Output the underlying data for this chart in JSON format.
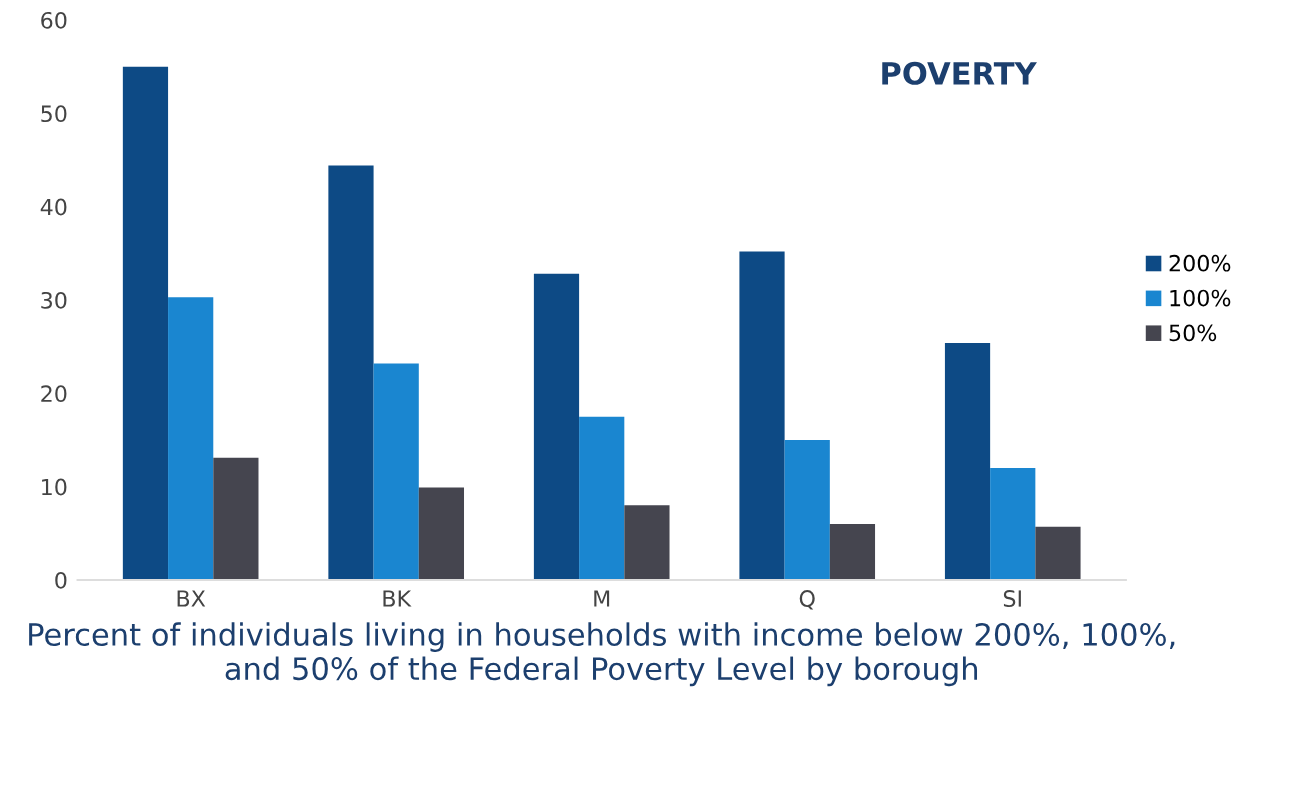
{
  "chart_data": {
    "type": "bar",
    "title": "POVERTY",
    "xlabel": "Percent of individuals living in households with income below 200%, 100%, and 50% of the Federal Poverty Level by borough",
    "categories": [
      "BX",
      "BK",
      "M",
      "Q",
      "SI"
    ],
    "series": [
      {
        "name": "200%",
        "color": "#0d4a85",
        "values": [
          55,
          44.4,
          32.8,
          35.2,
          25.4
        ]
      },
      {
        "name": "100%",
        "color": "#1a86d0",
        "values": [
          30.3,
          23.2,
          17.5,
          15,
          12
        ]
      },
      {
        "name": "50%",
        "color": "#45454f",
        "values": [
          13.1,
          9.9,
          8,
          6,
          5.7
        ]
      }
    ],
    "ylim": [
      0,
      60
    ],
    "yticks": [
      0,
      10,
      20,
      30,
      40,
      50,
      60
    ],
    "grid": false,
    "legend": "right"
  }
}
